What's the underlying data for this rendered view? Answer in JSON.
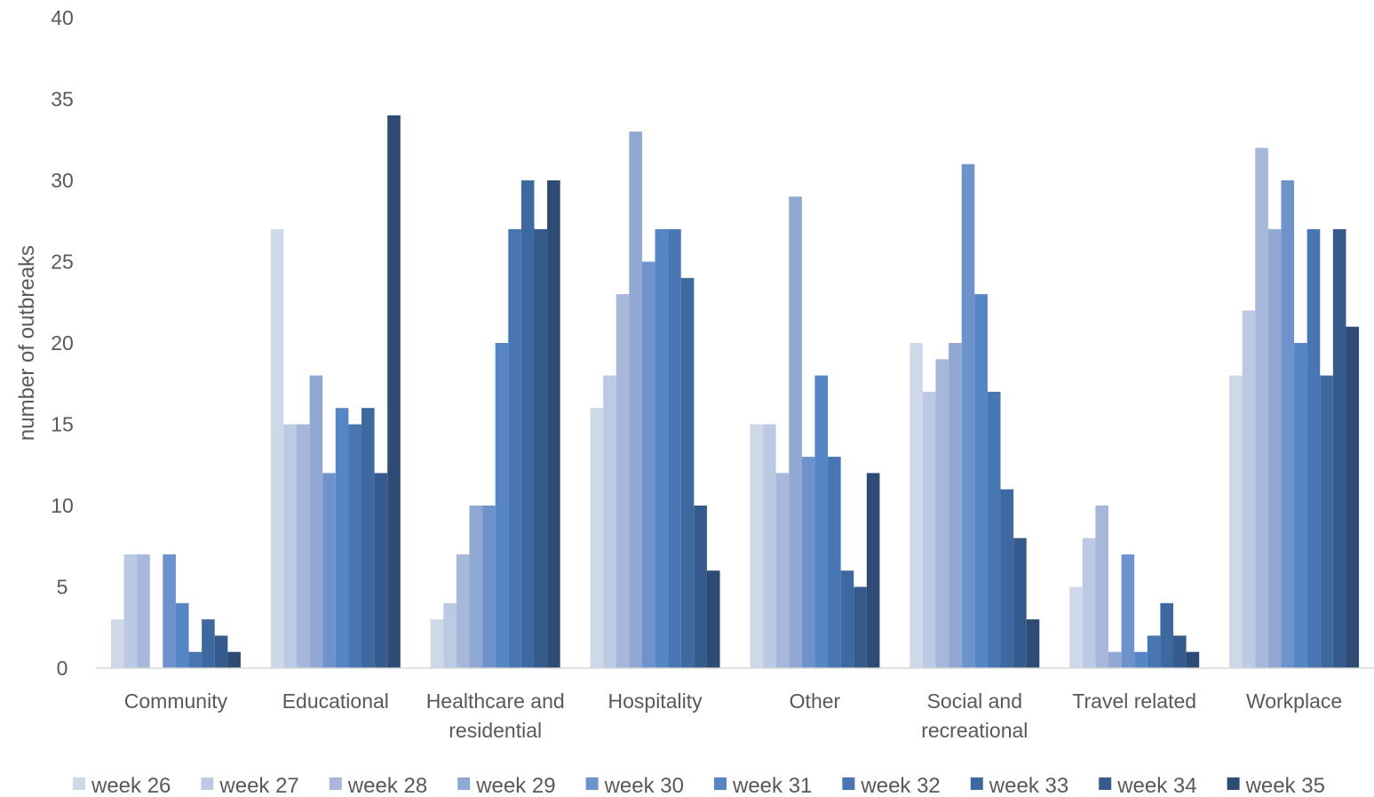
{
  "chart_data": {
    "type": "bar",
    "title": "",
    "xlabel": "",
    "ylabel": "number of outbreaks",
    "ylim": [
      0,
      40
    ],
    "yticks": [
      0,
      5,
      10,
      15,
      20,
      25,
      30,
      35,
      40
    ],
    "grid": false,
    "legend_position": "bottom",
    "categories": [
      [
        "Community"
      ],
      [
        "Educational"
      ],
      [
        "Healthcare and",
        "residential"
      ],
      [
        "Hospitality"
      ],
      [
        "Other"
      ],
      [
        "Social and",
        "recreational"
      ],
      [
        "Travel related"
      ],
      [
        "Workplace"
      ]
    ],
    "series": [
      {
        "name": "week 26",
        "color": "#cfd8e9",
        "values": [
          3,
          27,
          3,
          16,
          15,
          20,
          5,
          18
        ]
      },
      {
        "name": "week 27",
        "color": "#bcc9e2",
        "values": [
          7,
          15,
          4,
          18,
          15,
          17,
          8,
          22
        ]
      },
      {
        "name": "week 28",
        "color": "#a6b7d9",
        "values": [
          7,
          15,
          7,
          23,
          12,
          19,
          10,
          32
        ]
      },
      {
        "name": "week 29",
        "color": "#90a8d2",
        "values": [
          0,
          18,
          10,
          33,
          29,
          20,
          1,
          27
        ]
      },
      {
        "name": "week 30",
        "color": "#6e93cc",
        "values": [
          7,
          12,
          10,
          25,
          13,
          31,
          7,
          30
        ]
      },
      {
        "name": "week 31",
        "color": "#5585c4",
        "values": [
          4,
          16,
          20,
          27,
          18,
          23,
          1,
          20
        ]
      },
      {
        "name": "week 32",
        "color": "#4776b3",
        "values": [
          1,
          15,
          27,
          27,
          13,
          17,
          2,
          27
        ]
      },
      {
        "name": "week 33",
        "color": "#3e69a0",
        "values": [
          3,
          16,
          30,
          24,
          6,
          11,
          4,
          18
        ]
      },
      {
        "name": "week 34",
        "color": "#365a8b",
        "values": [
          2,
          12,
          27,
          10,
          5,
          8,
          2,
          27
        ]
      },
      {
        "name": "week 35",
        "color": "#2e4b75",
        "values": [
          1,
          34,
          30,
          6,
          12,
          3,
          1,
          21
        ]
      }
    ]
  }
}
